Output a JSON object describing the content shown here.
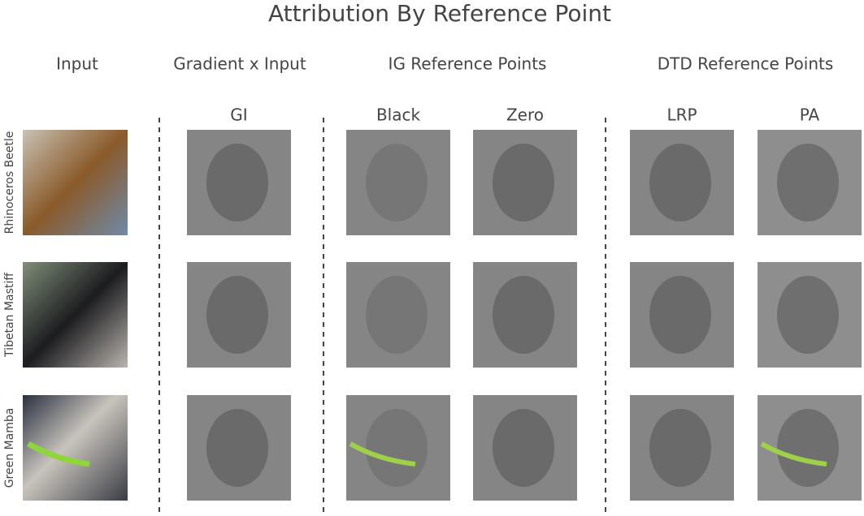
{
  "title": "Attribution By Reference Point",
  "groups": [
    "Input",
    "Gradient x Input",
    "IG Reference Points",
    "DTD Reference Points"
  ],
  "columns": [
    "GI",
    "Black",
    "Zero",
    "LRP",
    "PA"
  ],
  "rows": [
    "Rhinoceros Beetle",
    "Tibetan Mastiff",
    "Green Mamba"
  ]
}
